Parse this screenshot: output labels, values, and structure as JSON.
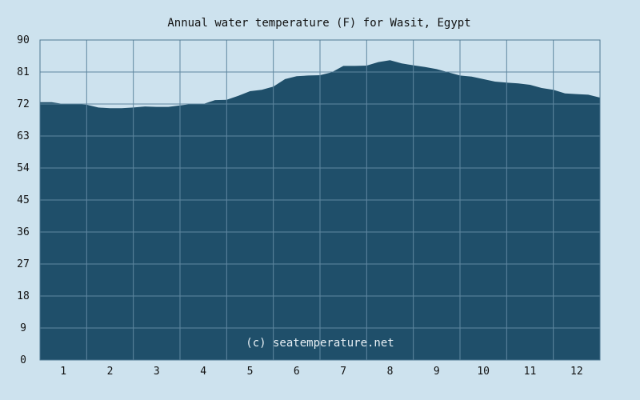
{
  "chart_data": {
    "type": "area",
    "title": "Annual water temperature (F) for Wasit, Egypt",
    "xlabel": "",
    "ylabel": "",
    "x_ticks": [
      "1",
      "2",
      "3",
      "4",
      "5",
      "6",
      "7",
      "8",
      "9",
      "10",
      "11",
      "12"
    ],
    "y_ticks": [
      "0",
      "9",
      "18",
      "27",
      "36",
      "45",
      "54",
      "63",
      "72",
      "81",
      "90"
    ],
    "xlim": [
      0.5,
      12.5
    ],
    "ylim": [
      0,
      90
    ],
    "grid": true,
    "colors": {
      "background": "#cde2ee",
      "area": "#1f4f6a",
      "grid": "#5f87a0",
      "watermark": "#e6eef3"
    },
    "series": [
      {
        "x": [
          0.5,
          0.75,
          1.0,
          1.25,
          1.5,
          1.75,
          2.0,
          2.25,
          2.5,
          2.75,
          3.0,
          3.25,
          3.5,
          3.75,
          4.0,
          4.25,
          4.5,
          4.75,
          5.0,
          5.25,
          5.5,
          5.75,
          6.0,
          6.25,
          6.5,
          6.75,
          7.0,
          7.25,
          7.5,
          7.75,
          8.0,
          8.25,
          8.5,
          8.75,
          9.0,
          9.25,
          9.5,
          9.75,
          10.0,
          10.25,
          10.5,
          10.75,
          11.0,
          11.25,
          11.5,
          11.75,
          12.0,
          12.25,
          12.5
        ],
        "values": [
          72.5,
          72.5,
          72.0,
          72.0,
          71.8,
          71.0,
          70.8,
          70.8,
          71.0,
          71.3,
          71.2,
          71.2,
          71.6,
          72.0,
          72.0,
          73.1,
          73.2,
          74.3,
          75.6,
          76.0,
          76.9,
          79.0,
          79.8,
          80.0,
          80.1,
          80.9,
          82.7,
          82.7,
          82.8,
          83.8,
          84.3,
          83.4,
          82.9,
          82.4,
          81.8,
          80.9,
          80.0,
          79.7,
          79.0,
          78.3,
          78.0,
          77.8,
          77.4,
          76.5,
          76.0,
          75.0,
          74.8,
          74.6,
          73.8
        ]
      }
    ]
  },
  "watermark": "(c) seatemperature.net"
}
